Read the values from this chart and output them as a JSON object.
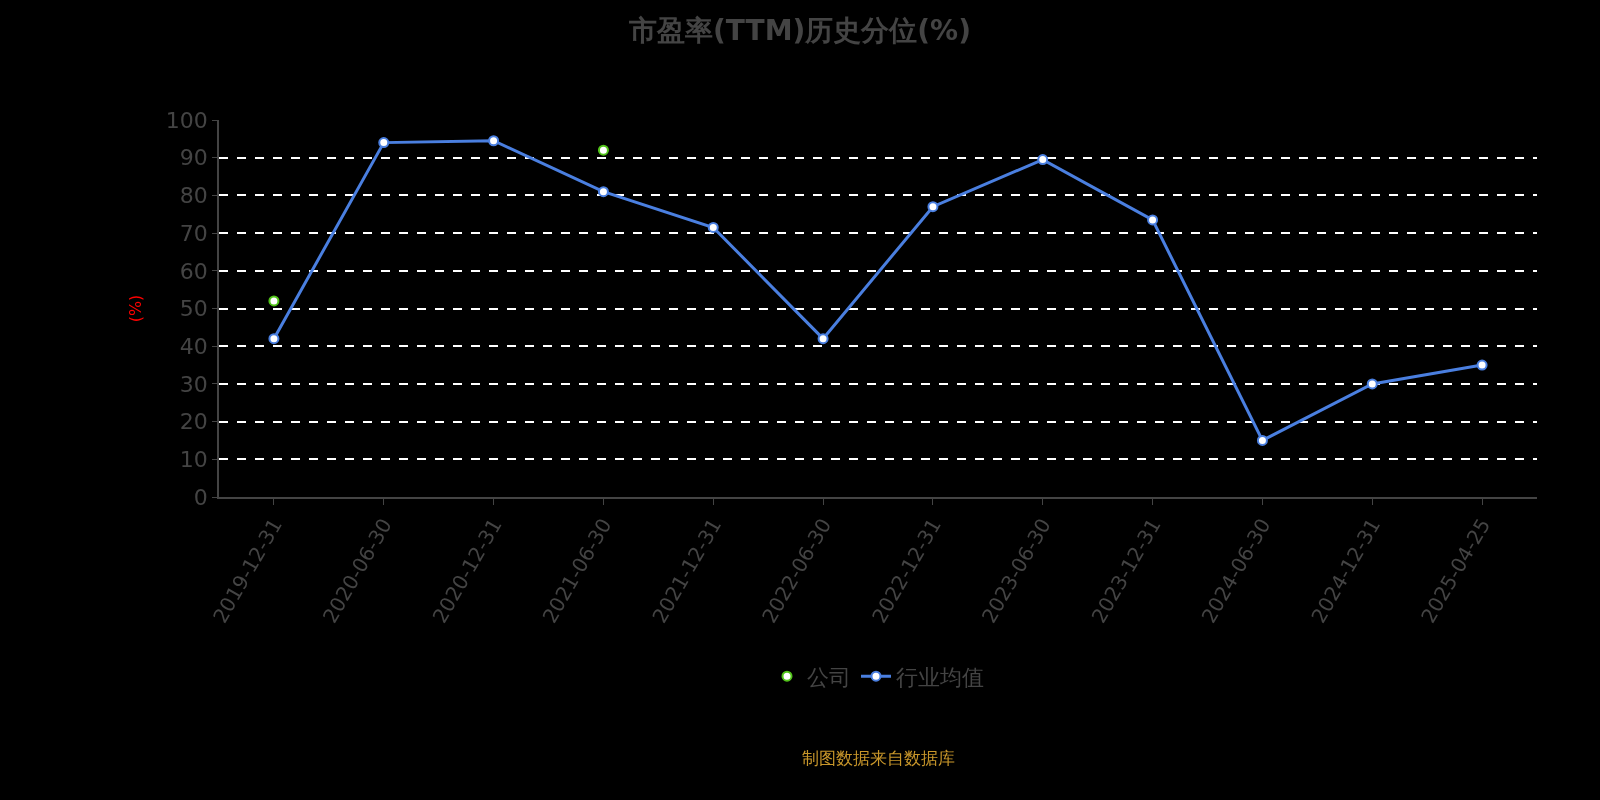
{
  "chart_data": {
    "type": "line",
    "title": "市盈率(TTM)历史分位(%)",
    "ylabel": "(%)",
    "categories": [
      "2019-12-31",
      "2020-06-30",
      "2020-12-31",
      "2021-06-30",
      "2021-12-31",
      "2022-06-30",
      "2022-12-31",
      "2023-06-30",
      "2023-12-31",
      "2024-06-30",
      "2024-12-31",
      "2025-04-25"
    ],
    "series": [
      {
        "name": "公司",
        "type": "scatter",
        "color": "#52c41a",
        "values": [
          52,
          null,
          null,
          92,
          null,
          null,
          null,
          null,
          null,
          null,
          null,
          null
        ]
      },
      {
        "name": "行业均值",
        "color": "#4a7fe0",
        "values": [
          42,
          94,
          94.5,
          81,
          71.5,
          42,
          77,
          89.5,
          73.5,
          15,
          30,
          35
        ]
      }
    ],
    "ylim": [
      0,
      100
    ],
    "yticks": [
      0,
      10,
      20,
      30,
      40,
      50,
      60,
      70,
      80,
      90,
      100
    ],
    "grid": "y",
    "legend": "bottom",
    "marker": "circle",
    "line_style": "solid",
    "annotations": [
      "制图数据来自数据库"
    ]
  }
}
